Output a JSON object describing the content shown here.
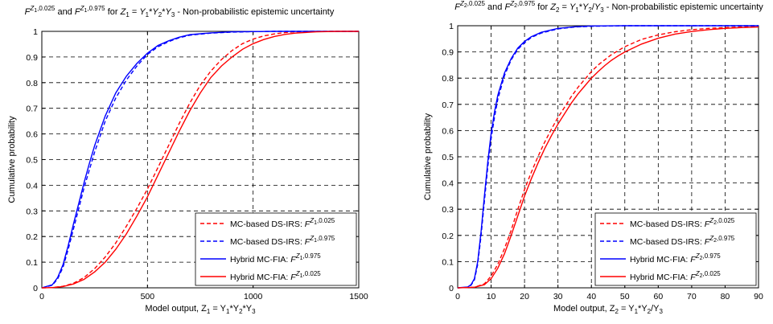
{
  "colors": {
    "red": "#ff0000",
    "blue": "#0000ff",
    "axis": "#000000",
    "background": "#ffffff"
  },
  "chart_data": [
    {
      "type": "line",
      "title_parts": [
        "F",
        "Z",
        "1",
        ",0.025",
        " and ",
        "F",
        "Z",
        "1",
        ",0.975",
        " for ",
        "Z",
        "1",
        " = ",
        "Y",
        "1",
        "*",
        "Y",
        "2",
        "*",
        "Y",
        "3",
        " - Non-probabilistic epistemic uncertainty"
      ],
      "xlabel": "Model output, Z1 = Y1*Y2*Y3",
      "ylabel": "Cumulative probability",
      "xlim": [
        0,
        1500
      ],
      "ylim": [
        0,
        1
      ],
      "xticks": [
        0,
        500,
        1000,
        1500
      ],
      "yticks": [
        0,
        0.1,
        0.2,
        0.3,
        0.4,
        0.5,
        0.6,
        0.7,
        0.8,
        0.9,
        1
      ],
      "grid": true,
      "legend_position": "bottom-right",
      "series": [
        {
          "name": "MC-based DS-IRS: FZ1,0.025",
          "legend_text": "MC-based DS-IRS: ",
          "legend_sup": "Z",
          "legend_sub": "1",
          "legend_tail": ",0.025",
          "color": "#ff0000",
          "style": "dashed",
          "x": [
            0,
            50,
            100,
            150,
            200,
            250,
            300,
            350,
            400,
            450,
            500,
            550,
            600,
            650,
            700,
            750,
            800,
            850,
            900,
            950,
            1000,
            1050,
            1100,
            1150,
            1200,
            1300,
            1400,
            1500
          ],
          "y": [
            0,
            0.001,
            0.006,
            0.018,
            0.04,
            0.075,
            0.12,
            0.175,
            0.24,
            0.31,
            0.385,
            0.47,
            0.555,
            0.64,
            0.72,
            0.79,
            0.845,
            0.89,
            0.925,
            0.952,
            0.97,
            0.982,
            0.99,
            0.995,
            0.998,
            0.999,
            1.0,
            1.0
          ]
        },
        {
          "name": "MC-based DS-IRS: FZ1,0.975",
          "legend_text": "MC-based DS-IRS: ",
          "legend_sup": "Z",
          "legend_sub": "1",
          "legend_tail": ",0.975",
          "color": "#0000ff",
          "style": "dashed",
          "x": [
            0,
            50,
            75,
            100,
            125,
            150,
            175,
            200,
            225,
            250,
            300,
            350,
            400,
            450,
            500,
            550,
            600,
            650,
            700,
            800,
            900,
            1000,
            1100,
            1200,
            1300,
            1500
          ],
          "y": [
            0,
            0.01,
            0.035,
            0.08,
            0.15,
            0.23,
            0.31,
            0.39,
            0.46,
            0.53,
            0.65,
            0.74,
            0.81,
            0.865,
            0.91,
            0.94,
            0.96,
            0.975,
            0.985,
            0.993,
            0.997,
            0.999,
            1.0,
            1.0,
            1.0,
            1.0
          ]
        },
        {
          "name": "Hybrid MC-FIA: FZ1,0.975",
          "legend_text": "Hybrid MC-FIA: ",
          "legend_sup": "Z",
          "legend_sub": "1",
          "legend_tail": ",0.975",
          "color": "#0000ff",
          "style": "solid",
          "x": [
            0,
            50,
            75,
            100,
            125,
            150,
            175,
            200,
            225,
            250,
            300,
            350,
            400,
            450,
            500,
            550,
            600,
            650,
            700,
            800,
            900,
            1000,
            1100,
            1200,
            1300,
            1500
          ],
          "y": [
            0,
            0.012,
            0.04,
            0.09,
            0.165,
            0.25,
            0.33,
            0.41,
            0.485,
            0.555,
            0.67,
            0.76,
            0.825,
            0.875,
            0.915,
            0.945,
            0.963,
            0.977,
            0.987,
            0.994,
            0.998,
            0.999,
            1.0,
            1.0,
            1.0,
            1.0
          ]
        },
        {
          "name": "Hybrid MC-FIA: FZ1,0.025",
          "legend_text": "Hybrid MC-FIA: ",
          "legend_sup": "Z",
          "legend_sub": "1",
          "legend_tail": ",0.025",
          "color": "#ff0000",
          "style": "solid",
          "x": [
            0,
            50,
            100,
            150,
            200,
            250,
            300,
            350,
            400,
            450,
            500,
            550,
            600,
            650,
            700,
            750,
            800,
            850,
            900,
            950,
            1000,
            1050,
            1100,
            1150,
            1200,
            1300,
            1400,
            1500
          ],
          "y": [
            0,
            0.001,
            0.005,
            0.015,
            0.033,
            0.062,
            0.1,
            0.15,
            0.21,
            0.28,
            0.355,
            0.44,
            0.525,
            0.61,
            0.69,
            0.76,
            0.82,
            0.865,
            0.9,
            0.93,
            0.952,
            0.968,
            0.98,
            0.988,
            0.993,
            0.998,
            1.0,
            1.0
          ]
        }
      ]
    },
    {
      "type": "line",
      "title_parts": [
        "F",
        "Z",
        "2",
        ",0.025",
        " and ",
        "F",
        "Z",
        "2",
        ",0.975",
        " for ",
        "Z",
        "2",
        " = ",
        "Y",
        "1",
        "*",
        "Y",
        "2",
        "/",
        "Y",
        "3",
        " - Non-probabilistic epistemic uncertainty"
      ],
      "xlabel": "Model output, Z2 = Y1*Y2/Y3",
      "ylabel": "Cumulative probability",
      "xlim": [
        0,
        90
      ],
      "ylim": [
        0,
        1
      ],
      "xticks": [
        0,
        10,
        20,
        30,
        40,
        50,
        60,
        70,
        80,
        90
      ],
      "yticks": [
        0,
        0.1,
        0.2,
        0.3,
        0.4,
        0.5,
        0.6,
        0.7,
        0.8,
        0.9,
        1
      ],
      "grid": true,
      "legend_position": "bottom-right",
      "series": [
        {
          "name": "MC-based DS-IRS: FZ2,0.025",
          "legend_text": "MC-based DS-IRS: ",
          "legend_sup": "Z",
          "legend_sub": "2",
          "legend_tail": ",0.025",
          "color": "#ff0000",
          "style": "dashed",
          "x": [
            0,
            5,
            8,
            10,
            12,
            14,
            16,
            18,
            20,
            22,
            24,
            26,
            28,
            30,
            32,
            34,
            36,
            38,
            40,
            42,
            44,
            46,
            48,
            50,
            55,
            60,
            65,
            70,
            75,
            80,
            85,
            90
          ],
          "y": [
            0,
            0.002,
            0.015,
            0.045,
            0.09,
            0.15,
            0.22,
            0.3,
            0.375,
            0.44,
            0.5,
            0.555,
            0.605,
            0.65,
            0.69,
            0.73,
            0.765,
            0.795,
            0.825,
            0.85,
            0.87,
            0.89,
            0.905,
            0.92,
            0.948,
            0.965,
            0.977,
            0.985,
            0.99,
            0.993,
            0.995,
            0.996
          ]
        },
        {
          "name": "MC-based DS-IRS: FZ2,0.975",
          "legend_text": "MC-based DS-IRS: ",
          "legend_sup": "Z",
          "legend_sub": "2",
          "legend_tail": ",0.975",
          "color": "#0000ff",
          "style": "dashed",
          "x": [
            0,
            3,
            4,
            5,
            6,
            7,
            8,
            9,
            10,
            11,
            12,
            14,
            16,
            18,
            20,
            22,
            25,
            30,
            35,
            40,
            50,
            60,
            70,
            80,
            90
          ],
          "y": [
            0,
            0.002,
            0.01,
            0.03,
            0.09,
            0.2,
            0.33,
            0.46,
            0.57,
            0.65,
            0.72,
            0.81,
            0.87,
            0.91,
            0.935,
            0.955,
            0.972,
            0.988,
            0.995,
            0.998,
            1.0,
            1.0,
            1.0,
            1.0,
            1.0
          ]
        },
        {
          "name": "Hybrid MC-FIA: FZ2,0.975",
          "legend_text": "Hybrid MC-FIA: ",
          "legend_sup": "Z",
          "legend_sub": "2",
          "legend_tail": ",0.975",
          "color": "#0000ff",
          "style": "solid",
          "x": [
            0,
            3,
            4,
            5,
            6,
            7,
            8,
            9,
            10,
            11,
            12,
            14,
            16,
            18,
            20,
            22,
            25,
            30,
            35,
            40,
            50,
            60,
            70,
            80,
            90
          ],
          "y": [
            0,
            0.003,
            0.012,
            0.035,
            0.1,
            0.215,
            0.35,
            0.48,
            0.59,
            0.67,
            0.735,
            0.82,
            0.875,
            0.915,
            0.94,
            0.958,
            0.975,
            0.99,
            0.996,
            0.999,
            1.0,
            1.0,
            1.0,
            1.0,
            1.0
          ]
        },
        {
          "name": "Hybrid MC-FIA: FZ2,0.025",
          "legend_text": "Hybrid MC-FIA: ",
          "legend_sup": "Z",
          "legend_sub": "2",
          "legend_tail": ",0.025",
          "color": "#ff0000",
          "style": "solid",
          "x": [
            0,
            5,
            8,
            10,
            12,
            14,
            16,
            18,
            20,
            22,
            24,
            26,
            28,
            30,
            32,
            34,
            36,
            38,
            40,
            42,
            44,
            46,
            48,
            50,
            55,
            60,
            65,
            70,
            75,
            80,
            85,
            90
          ],
          "y": [
            0,
            0.002,
            0.012,
            0.035,
            0.075,
            0.13,
            0.2,
            0.275,
            0.35,
            0.415,
            0.475,
            0.53,
            0.58,
            0.625,
            0.665,
            0.705,
            0.74,
            0.77,
            0.8,
            0.825,
            0.848,
            0.868,
            0.885,
            0.9,
            0.93,
            0.952,
            0.968,
            0.978,
            0.985,
            0.99,
            0.993,
            0.995
          ]
        }
      ]
    }
  ]
}
